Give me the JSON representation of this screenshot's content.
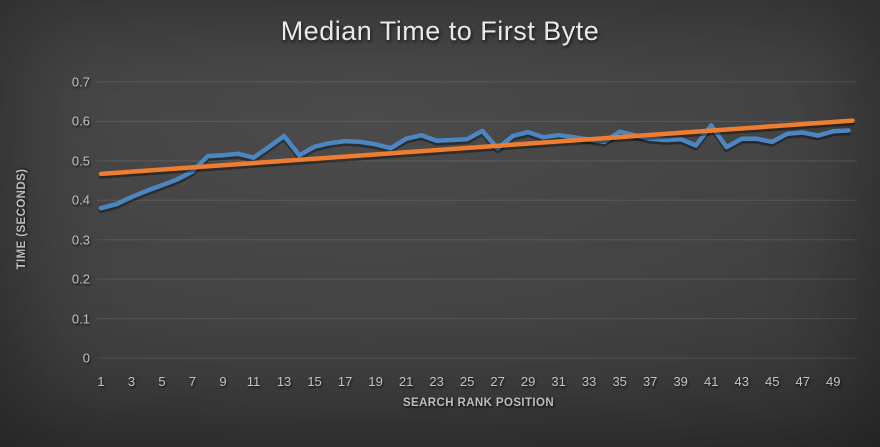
{
  "chart": {
    "colors": {
      "background_center": "#4b4b4b",
      "background_edge": "#222222",
      "gridline": "rgba(255,255,255,0.11)",
      "title_text": "#e9e9e9",
      "tick_text": "#c3c3c3",
      "axis_title_text": "#bdbdbd"
    }
  },
  "chart_data": {
    "type": "line",
    "title": "Median Time to First Byte",
    "xlabel": "SEARCH RANK POSITION",
    "ylabel": "TIME (SECONDS)",
    "legend": "none",
    "grid": "horizontal",
    "xlim": [
      1,
      50
    ],
    "ylim": [
      0,
      0.7
    ],
    "y_ticks": [
      0,
      0.1,
      0.2,
      0.3,
      0.4,
      0.5,
      0.6,
      0.7
    ],
    "y_tick_labels": [
      "0",
      "0.1",
      "0.2",
      "0.3",
      "0.4",
      "0.5",
      "0.6",
      "0.7"
    ],
    "x_tick_labels": [
      "1",
      "3",
      "5",
      "7",
      "9",
      "11",
      "13",
      "15",
      "17",
      "19",
      "21",
      "23",
      "25",
      "27",
      "29",
      "31",
      "33",
      "35",
      "37",
      "39",
      "41",
      "43",
      "45",
      "47",
      "49"
    ],
    "x": [
      1,
      2,
      3,
      4,
      5,
      6,
      7,
      8,
      9,
      10,
      11,
      12,
      13,
      14,
      15,
      16,
      17,
      18,
      19,
      20,
      21,
      22,
      23,
      24,
      25,
      26,
      27,
      28,
      29,
      30,
      31,
      32,
      33,
      34,
      35,
      36,
      37,
      38,
      39,
      40,
      41,
      42,
      43,
      44,
      45,
      46,
      47,
      48,
      49,
      50
    ],
    "series": [
      {
        "name": "median-time-to-first-byte",
        "kind": "data",
        "color": "#4C86C2",
        "stroke_width": 4.5,
        "values": [
          0.38,
          0.39,
          0.408,
          0.424,
          0.438,
          0.453,
          0.473,
          0.512,
          0.514,
          0.518,
          0.508,
          0.535,
          0.563,
          0.514,
          0.536,
          0.545,
          0.55,
          0.548,
          0.542,
          0.532,
          0.556,
          0.565,
          0.551,
          0.553,
          0.555,
          0.576,
          0.531,
          0.563,
          0.573,
          0.56,
          0.565,
          0.56,
          0.554,
          0.548,
          0.574,
          0.565,
          0.556,
          0.553,
          0.555,
          0.539,
          0.59,
          0.535,
          0.556,
          0.556,
          0.548,
          0.569,
          0.572,
          0.564,
          0.575,
          0.577
        ]
      },
      {
        "name": "linear-trendline",
        "kind": "trend",
        "color": "#ED7D31",
        "stroke_width": 4.5,
        "start_value": 0.467,
        "end_value": 0.602
      }
    ]
  }
}
